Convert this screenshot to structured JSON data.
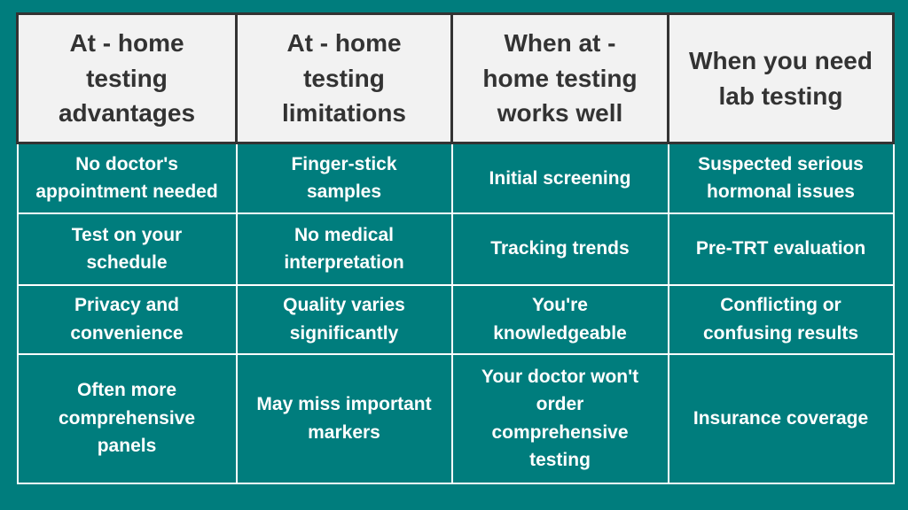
{
  "colors": {
    "background_teal": "#007d7d",
    "header_background": "#f2f2f2",
    "header_text": "#333333",
    "header_border": "#333333",
    "body_text": "#ffffff",
    "body_border": "#ffffff"
  },
  "display": {
    "headers": [
      "At - home\ntesting\nadvantages",
      "At - home\ntesting\nlimitations",
      "When at -\nhome testing\nworks well",
      "When you need\nlab testing"
    ],
    "rows": [
      [
        "No doctor's\nappointment needed",
        "Finger-stick\nsamples",
        "Initial screening",
        "Suspected serious\nhormonal issues"
      ],
      [
        "Test on your\nschedule",
        "No medical\ninterpretation",
        "Tracking trends",
        "Pre-TRT evaluation"
      ],
      [
        "Privacy and\nconvenience",
        "Quality varies\nsignificantly",
        "You're\nknowledgeable",
        "Conflicting or\nconfusing results"
      ],
      [
        "Often more\ncomprehensive\npanels",
        "May miss important\nmarkers",
        "Your doctor won't\norder\ncomprehensive\ntesting",
        "Insurance coverage"
      ]
    ]
  },
  "chart_data": {
    "type": "table",
    "title": "",
    "columns": [
      "At - home testing advantages",
      "At - home testing limitations",
      "When at - home testing works well",
      "When you need lab testing"
    ],
    "rows": [
      [
        "No doctor's appointment needed",
        "Finger-stick samples",
        "Initial screening",
        "Suspected serious hormonal issues"
      ],
      [
        "Test on your schedule",
        "No medical interpretation",
        "Tracking trends",
        "Pre-TRT evaluation"
      ],
      [
        "Privacy and convenience",
        "Quality varies significantly",
        "You're knowledgeable",
        "Conflicting or confusing results"
      ],
      [
        "Often more comprehensive panels",
        "May miss important markers",
        "Your doctor won't order comprehensive testing",
        "Insurance coverage"
      ]
    ],
    "layout_hints": {
      "header_style": "light cells with dark border and dark bold text",
      "body_style": "teal cells with white borders and white bold text",
      "grid": "on"
    }
  }
}
